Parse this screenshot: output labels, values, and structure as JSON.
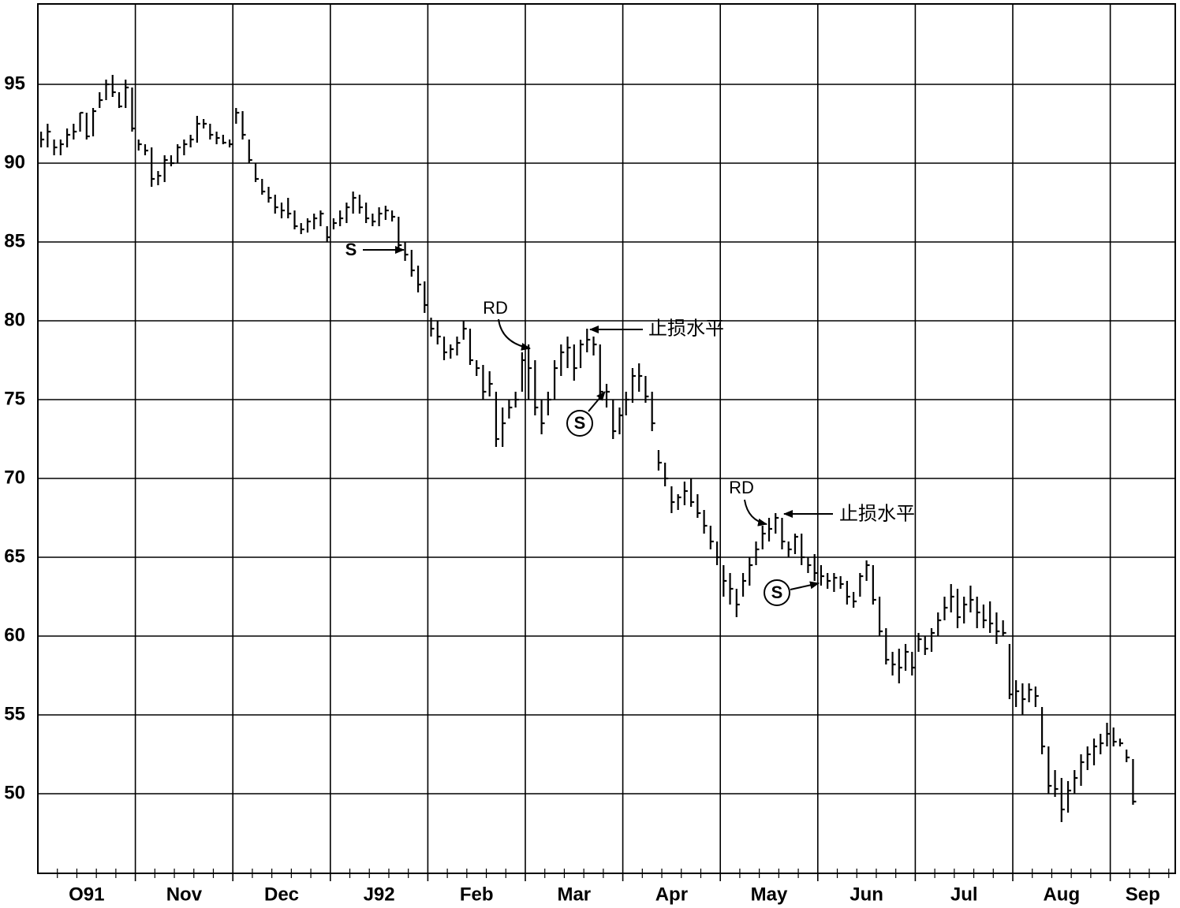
{
  "chart_data": {
    "type": "ohlc",
    "color": "#000000",
    "grid": true,
    "ylim": [
      45,
      100
    ],
    "yticks": [
      50,
      55,
      60,
      65,
      70,
      75,
      80,
      85,
      90,
      95
    ],
    "annotations": [
      "S",
      "RD",
      "止损水平",
      "S",
      "RD",
      "止损水平",
      "S"
    ],
    "months": [
      {
        "label": "O91",
        "bars": [
          [
            92,
            91,
            91.5
          ],
          [
            92.5,
            91,
            92
          ],
          [
            91.5,
            90.5,
            91
          ],
          [
            91.5,
            90.5,
            91.2
          ],
          [
            92.2,
            91,
            91.8
          ],
          [
            92.5,
            91.5,
            92
          ],
          [
            93.2,
            92,
            93.2
          ],
          [
            93.2,
            91.5,
            91.7
          ],
          [
            93.5,
            91.7,
            93.3
          ],
          [
            94.5,
            93.5,
            94
          ],
          [
            95.3,
            94,
            95
          ],
          [
            95.6,
            94.2,
            94.5
          ],
          [
            94.5,
            93.5,
            93.6
          ],
          [
            95.3,
            93.5,
            94.8
          ],
          [
            94.8,
            92,
            92.2
          ]
        ]
      },
      {
        "label": "Nov",
        "bars": [
          [
            91.5,
            90.8,
            91.2
          ],
          [
            91.2,
            90.5,
            90.8
          ],
          [
            91,
            88.5,
            89
          ],
          [
            89.5,
            88.6,
            89.2
          ],
          [
            90.5,
            88.8,
            90.2
          ],
          [
            90.5,
            89.8,
            90
          ],
          [
            91.2,
            90,
            91
          ],
          [
            91.5,
            90.5,
            91.2
          ],
          [
            91.8,
            91,
            91.5
          ],
          [
            93,
            91.3,
            92.5
          ],
          [
            92.8,
            92.2,
            92.5
          ],
          [
            92.5,
            91.5,
            91.8
          ],
          [
            92,
            91.2,
            91.6
          ],
          [
            91.8,
            91.2,
            91.3
          ],
          [
            91.5,
            91,
            91.2
          ]
        ]
      },
      {
        "label": "Dec",
        "bars": [
          [
            93.5,
            92.5,
            93.2
          ],
          [
            93.3,
            91.5,
            91.8
          ],
          [
            91.5,
            90,
            90.2
          ],
          [
            90,
            88.8,
            89
          ],
          [
            89,
            88,
            88.2
          ],
          [
            88.5,
            87.5,
            87.8
          ],
          [
            88,
            86.8,
            87.2
          ],
          [
            87.5,
            86.5,
            87
          ],
          [
            87.8,
            86.5,
            86.8
          ],
          [
            87,
            85.8,
            86
          ],
          [
            86.2,
            85.5,
            85.8
          ],
          [
            86.5,
            85.6,
            86.3
          ],
          [
            86.8,
            85.8,
            86.5
          ],
          [
            87,
            86,
            86.8
          ],
          [
            86,
            85,
            85.3
          ]
        ]
      },
      {
        "label": "J92",
        "bars": [
          [
            86.5,
            85.8,
            86.2
          ],
          [
            87,
            86,
            86.5
          ],
          [
            87.5,
            86.2,
            87.2
          ],
          [
            88.2,
            86.8,
            87.8
          ],
          [
            88,
            86.8,
            87.2
          ],
          [
            87.5,
            86.2,
            86.5
          ],
          [
            86.8,
            86,
            86.3
          ],
          [
            87.2,
            86,
            86.8
          ],
          [
            87.3,
            86.4,
            87
          ],
          [
            87,
            86.3,
            86.6
          ],
          [
            86.6,
            84.5,
            84.8
          ],
          [
            85,
            83.8,
            84.2
          ],
          [
            84.5,
            82.8,
            83.2
          ],
          [
            83.5,
            81.8,
            82.3
          ],
          [
            82.5,
            80.5,
            81
          ]
        ]
      },
      {
        "label": "Feb",
        "bars": [
          [
            80.2,
            79,
            79.5
          ],
          [
            80,
            78.5,
            79
          ],
          [
            79,
            77.5,
            78
          ],
          [
            78.5,
            77.6,
            78.2
          ],
          [
            79,
            77.8,
            78.6
          ],
          [
            80,
            78.8,
            79.5
          ],
          [
            79.5,
            77.2,
            77.5
          ],
          [
            77.5,
            76.5,
            77
          ],
          [
            77.2,
            75,
            75.5
          ],
          [
            76.8,
            75.2,
            76
          ],
          [
            75.5,
            72,
            72.5
          ],
          [
            74.5,
            72,
            73.5
          ],
          [
            75,
            73.8,
            74.5
          ],
          [
            75.5,
            74.5,
            75
          ],
          [
            78,
            75.5,
            77.5
          ]
        ]
      },
      {
        "label": "Mar",
        "bars": [
          [
            78.5,
            75,
            77
          ],
          [
            77.5,
            74,
            74.5
          ],
          [
            75,
            72.8,
            73.5
          ],
          [
            75.5,
            74,
            75
          ],
          [
            77.5,
            75,
            77
          ],
          [
            78.5,
            76.5,
            78
          ],
          [
            79,
            77,
            78.3
          ],
          [
            78.5,
            76.2,
            77
          ],
          [
            78.8,
            77,
            78.5
          ],
          [
            79.5,
            78,
            78.8
          ],
          [
            79,
            77.8,
            78.5
          ],
          [
            78.5,
            75,
            75.5
          ],
          [
            76,
            74.5,
            75.5
          ],
          [
            75,
            72.5,
            73
          ],
          [
            74.5,
            72.8,
            74
          ]
        ]
      },
      {
        "label": "Apr",
        "bars": [
          [
            75.5,
            74,
            75
          ],
          [
            77,
            74.8,
            76.5
          ],
          [
            77.3,
            75.5,
            76.5
          ],
          [
            76.5,
            74.8,
            75.2
          ],
          [
            75.5,
            73,
            73.5
          ],
          [
            71.8,
            70.5,
            71
          ],
          [
            71,
            69.5,
            70
          ],
          [
            69.5,
            67.8,
            68.5
          ],
          [
            69,
            68,
            68.8
          ],
          [
            69.8,
            68.3,
            69.2
          ],
          [
            70,
            68.2,
            68.5
          ],
          [
            69,
            67.5,
            67.8
          ],
          [
            68,
            66.5,
            67
          ],
          [
            67,
            65.5,
            66
          ],
          [
            66,
            64.5,
            65
          ]
        ]
      },
      {
        "label": "May",
        "bars": [
          [
            64.5,
            62.5,
            63.5
          ],
          [
            64,
            62,
            63
          ],
          [
            63,
            61.2,
            62
          ],
          [
            64,
            62.5,
            63.5
          ],
          [
            65,
            63.2,
            64.5
          ],
          [
            66,
            64.5,
            65.5
          ],
          [
            67,
            65.5,
            66.5
          ],
          [
            67.5,
            66,
            66.8
          ],
          [
            67.8,
            66.5,
            67.5
          ],
          [
            67.5,
            65.5,
            66
          ],
          [
            66,
            65,
            65.5
          ],
          [
            66.5,
            65.2,
            66.3
          ],
          [
            66.5,
            64.5,
            65
          ],
          [
            65,
            64,
            64.5
          ],
          [
            65.2,
            63.5,
            64
          ]
        ]
      },
      {
        "label": "Jun",
        "bars": [
          [
            64.5,
            63.2,
            63.8
          ],
          [
            64,
            63,
            63.5
          ],
          [
            64,
            62.8,
            63.7
          ],
          [
            63.8,
            63,
            63.3
          ],
          [
            63.5,
            62,
            62.5
          ],
          [
            62.8,
            61.8,
            62.2
          ],
          [
            64,
            62.5,
            63.8
          ],
          [
            64.8,
            63.5,
            64.5
          ],
          [
            64.5,
            62,
            62.3
          ],
          [
            62.5,
            60,
            60.3
          ],
          [
            60.5,
            58.2,
            58.5
          ],
          [
            59,
            57.5,
            58.2
          ],
          [
            59.2,
            57,
            58
          ],
          [
            59.5,
            57.8,
            59
          ],
          [
            59,
            57.5,
            58
          ]
        ]
      },
      {
        "label": "Jul",
        "bars": [
          [
            60.2,
            59,
            59.8
          ],
          [
            60,
            58.8,
            59.2
          ],
          [
            60.5,
            59,
            60.2
          ],
          [
            61.5,
            60,
            61
          ],
          [
            62.5,
            61,
            61.8
          ],
          [
            63.3,
            61.5,
            62.5
          ],
          [
            63,
            60.5,
            61.2
          ],
          [
            62.5,
            60.8,
            62
          ],
          [
            63.2,
            61.5,
            62.3
          ],
          [
            62.5,
            60.5,
            61.5
          ],
          [
            62,
            60.5,
            61
          ],
          [
            62.2,
            60.2,
            60.8
          ],
          [
            61.5,
            59.5,
            60.3
          ],
          [
            61,
            60,
            60.2
          ],
          [
            59.5,
            56,
            56.3
          ]
        ]
      },
      {
        "label": "Aug",
        "bars": [
          [
            57.2,
            55.5,
            56.5
          ],
          [
            57,
            55,
            56
          ],
          [
            57,
            55.8,
            56.6
          ],
          [
            56.8,
            55.5,
            56.2
          ],
          [
            55.5,
            52.5,
            53
          ],
          [
            53,
            50,
            50.5
          ],
          [
            51.5,
            49.8,
            50.3
          ],
          [
            51,
            48.2,
            49
          ],
          [
            50.8,
            48.8,
            50.2
          ],
          [
            51.5,
            50,
            51
          ],
          [
            52.5,
            50.5,
            52
          ],
          [
            53,
            51.5,
            52.5
          ],
          [
            53.5,
            51.8,
            53
          ],
          [
            53.8,
            52.5,
            53.2
          ],
          [
            54.5,
            53,
            53.8
          ]
        ]
      },
      {
        "label": "Sep",
        "bars": [
          [
            54.2,
            53,
            53.3
          ],
          [
            53.5,
            53,
            53.2
          ],
          [
            52.8,
            52,
            52.3
          ],
          [
            52.2,
            49.3,
            49.5
          ]
        ]
      }
    ]
  }
}
